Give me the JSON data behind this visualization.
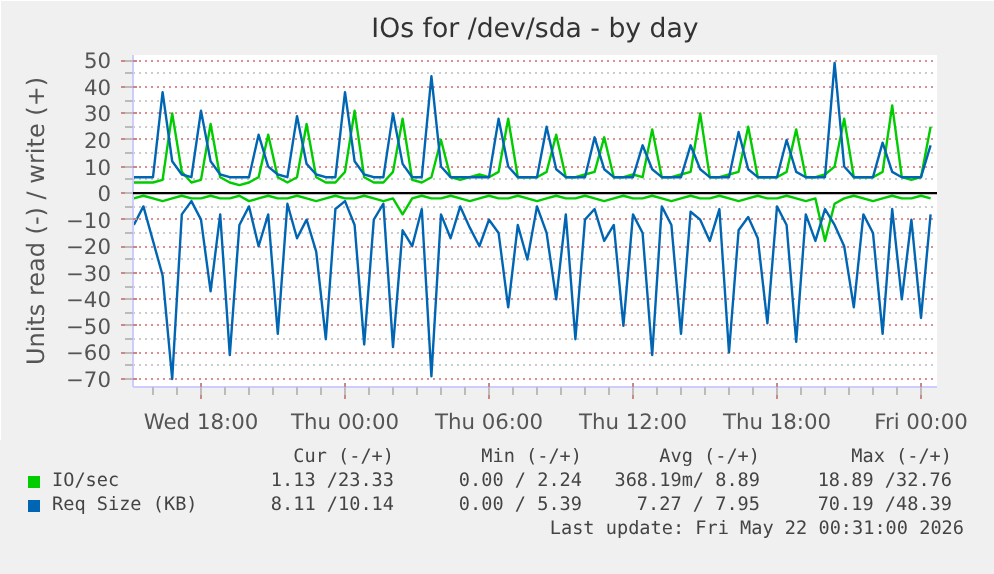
{
  "chart_data": {
    "type": "line",
    "title": "IOs for /dev/sda - by day",
    "ylabel": "Units read (-) / write (+)",
    "x": [
      "2026-05-20T15:12",
      "2026-05-20T15:36",
      "2026-05-20T16:00",
      "2026-05-20T16:24",
      "2026-05-20T16:48",
      "2026-05-20T17:12",
      "2026-05-20T17:36",
      "2026-05-20T18:00",
      "2026-05-20T18:24",
      "2026-05-20T18:48",
      "2026-05-20T19:12",
      "2026-05-20T19:36",
      "2026-05-20T20:00",
      "2026-05-20T20:24",
      "2026-05-20T20:48",
      "2026-05-20T21:12",
      "2026-05-20T21:36",
      "2026-05-20T22:00",
      "2026-05-20T22:24",
      "2026-05-20T22:48",
      "2026-05-20T23:12",
      "2026-05-20T23:36",
      "2026-05-21T00:00",
      "2026-05-21T00:24",
      "2026-05-21T00:48",
      "2026-05-21T01:12",
      "2026-05-21T01:36",
      "2026-05-21T02:00",
      "2026-05-21T02:24",
      "2026-05-21T02:48",
      "2026-05-21T03:12",
      "2026-05-21T03:36",
      "2026-05-21T04:00",
      "2026-05-21T04:24",
      "2026-05-21T04:48",
      "2026-05-21T05:12",
      "2026-05-21T05:36",
      "2026-05-21T06:00",
      "2026-05-21T06:24",
      "2026-05-21T06:48",
      "2026-05-21T07:12",
      "2026-05-21T07:36",
      "2026-05-21T08:00",
      "2026-05-21T08:24",
      "2026-05-21T08:48",
      "2026-05-21T09:12",
      "2026-05-21T09:36",
      "2026-05-21T10:00",
      "2026-05-21T10:24",
      "2026-05-21T10:48",
      "2026-05-21T11:12",
      "2026-05-21T11:36",
      "2026-05-21T12:00",
      "2026-05-21T12:24",
      "2026-05-21T12:48",
      "2026-05-21T13:12",
      "2026-05-21T13:36",
      "2026-05-21T14:00",
      "2026-05-21T14:24",
      "2026-05-21T14:48",
      "2026-05-21T15:12",
      "2026-05-21T15:36",
      "2026-05-21T16:00",
      "2026-05-21T16:24",
      "2026-05-21T16:48",
      "2026-05-21T17:12",
      "2026-05-21T17:36",
      "2026-05-21T18:00",
      "2026-05-21T18:24",
      "2026-05-21T18:48",
      "2026-05-21T19:12",
      "2026-05-21T19:36",
      "2026-05-21T20:00",
      "2026-05-21T20:24",
      "2026-05-21T20:48",
      "2026-05-21T21:12",
      "2026-05-21T21:36",
      "2026-05-21T22:00",
      "2026-05-21T22:24",
      "2026-05-21T22:48",
      "2026-05-21T23:12",
      "2026-05-21T23:36",
      "2026-05-22T00:00",
      "2026-05-22T00:24"
    ],
    "series": [
      {
        "color": "#00cc00",
        "values": [
          -2,
          -1,
          -2,
          -3,
          -2,
          -1,
          -2,
          -2,
          -1,
          -2,
          -2,
          -1,
          -3,
          -2,
          -1,
          -2,
          -2,
          -1,
          -2,
          -3,
          -2,
          -1,
          -2,
          -2,
          -1,
          -2,
          -3,
          -2,
          -8,
          -2,
          -1,
          -2,
          -2,
          -1,
          -2,
          -3,
          -2,
          -1,
          -2,
          -2,
          -1,
          -2,
          -3,
          -2,
          -1,
          -2,
          -2,
          -1,
          -2,
          -3,
          -2,
          -1,
          -2,
          -2,
          -1,
          -2,
          -3,
          -2,
          -1,
          -2,
          -2,
          -1,
          -2,
          -3,
          -2,
          -1,
          -2,
          -2,
          -1,
          -2,
          -3,
          -2,
          -18,
          -4,
          -2,
          -1,
          -2,
          -3,
          -2,
          -1,
          -2,
          -2,
          -1,
          -2
        ]
      },
      {
        "name": "IO/sec",
        "color": "#00cc00",
        "values": [
          4,
          4,
          4,
          5,
          30,
          8,
          4,
          5,
          26,
          6,
          4,
          3,
          4,
          6,
          22,
          6,
          4,
          6,
          26,
          6,
          4,
          4,
          8,
          31,
          6,
          4,
          4,
          8,
          28,
          5,
          4,
          6,
          20,
          6,
          5,
          6,
          7,
          6,
          8,
          28,
          6,
          6,
          6,
          8,
          22,
          6,
          6,
          7,
          8,
          21,
          6,
          6,
          7,
          6,
          24,
          6,
          6,
          7,
          8,
          30,
          6,
          6,
          7,
          8,
          25,
          6,
          6,
          6,
          8,
          24,
          6,
          6,
          7,
          10,
          28,
          6,
          6,
          6,
          8,
          33,
          6,
          5,
          6,
          25
        ]
      },
      {
        "color": "#0066b3",
        "values": [
          -12,
          -5,
          -18,
          -31,
          -70,
          -8,
          -3,
          -10,
          -37,
          -8,
          -61,
          -12,
          -5,
          -20,
          -8,
          -53,
          -4,
          -17,
          -10,
          -22,
          -55,
          -6,
          -3,
          -12,
          -57,
          -10,
          -4,
          -58,
          -14,
          -20,
          -6,
          -69,
          -8,
          -17,
          -5,
          -13,
          -20,
          -10,
          -15,
          -43,
          -12,
          -25,
          -5,
          -15,
          -40,
          -8,
          -55,
          -10,
          -6,
          -18,
          -12,
          -50,
          -8,
          -15,
          -61,
          -5,
          -12,
          -53,
          -7,
          -10,
          -18,
          -6,
          -60,
          -14,
          -9,
          -17,
          -49,
          -5,
          -12,
          -56,
          -8,
          -18,
          -6,
          -12,
          -20,
          -43,
          -8,
          -15,
          -53,
          -6,
          -40,
          -10,
          -47,
          -8
        ]
      },
      {
        "name": "Req Size (KB)",
        "color": "#0066b3",
        "values": [
          6,
          6,
          6,
          38,
          12,
          7,
          6,
          31,
          12,
          7,
          6,
          6,
          6,
          22,
          10,
          7,
          6,
          29,
          11,
          7,
          6,
          6,
          38,
          12,
          7,
          6,
          6,
          30,
          11,
          6,
          6,
          44,
          10,
          6,
          6,
          6,
          6,
          6,
          28,
          10,
          6,
          6,
          6,
          25,
          9,
          6,
          6,
          6,
          21,
          9,
          6,
          6,
          6,
          18,
          9,
          6,
          6,
          6,
          18,
          9,
          6,
          6,
          6,
          23,
          9,
          6,
          6,
          6,
          20,
          8,
          6,
          6,
          6,
          49,
          10,
          6,
          6,
          6,
          19,
          8,
          6,
          6,
          6,
          18
        ]
      }
    ],
    "xlim": [
      "2026-05-20T15:10",
      "2026-05-22T00:40"
    ],
    "xticks": [
      {
        "value": "2026-05-20T18:00",
        "label": "Wed 18:00"
      },
      {
        "value": "2026-05-21T00:00",
        "label": "Thu 00:00"
      },
      {
        "value": "2026-05-21T06:00",
        "label": "Thu 06:00"
      },
      {
        "value": "2026-05-21T12:00",
        "label": "Thu 12:00"
      },
      {
        "value": "2026-05-21T18:00",
        "label": "Thu 18:00"
      },
      {
        "value": "2026-05-22T00:00",
        "label": "Fri 00:00"
      }
    ],
    "ylim": [
      -73,
      52
    ],
    "yticks": [
      -70,
      -60,
      -50,
      -40,
      -30,
      -20,
      -10,
      0,
      10,
      20,
      30,
      40,
      50
    ],
    "ref_lines": [
      {
        "axis": "y",
        "value": 0,
        "color": "#000000"
      }
    ],
    "grid": true,
    "legend": "bottom",
    "annotations": [
      "Cur (-/+)",
      "Min (-/+)",
      "Avg (-/+)",
      "Max (-/+)",
      "1.13 /23.33",
      "0.00 / 2.24",
      "368.19m/ 8.89",
      "18.89 /32.76",
      "8.11 /10.14",
      "0.00 / 5.39",
      "7.27 / 7.95",
      "70.19 /48.39",
      "Last update: Fri May 22 00:31:00 2026"
    ]
  }
}
